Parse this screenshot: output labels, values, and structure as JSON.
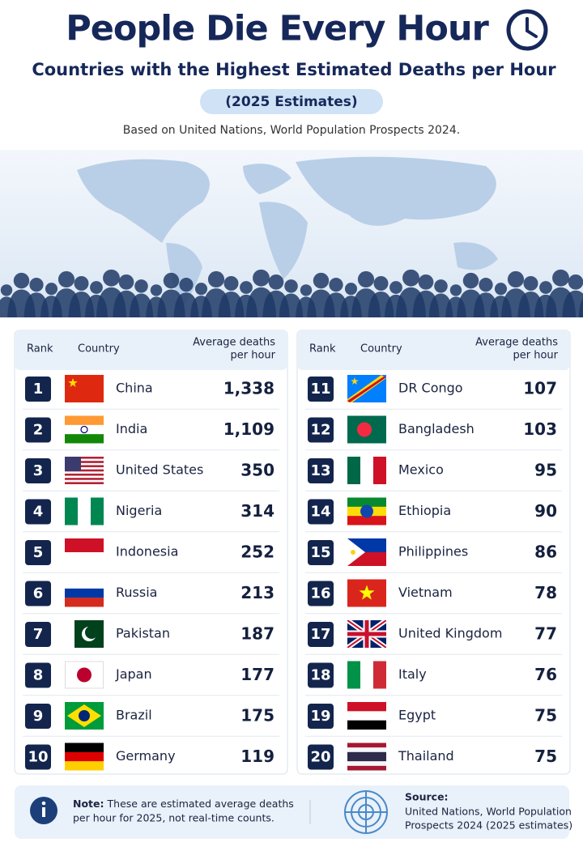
{
  "header": {
    "title": "People Die Every Hour",
    "subtitle": "Countries with the Highest Estimated Deaths per Hour",
    "badge": "(2025 Estimates)",
    "source_line": "Based on United Nations, World Population Prospects 2024."
  },
  "tables": [
    {
      "columns": [
        "Rank",
        "Country",
        [
          "Average deaths",
          "per hour"
        ]
      ],
      "rows": [
        [
          1,
          "China",
          "1,338"
        ],
        [
          2,
          "India",
          "1,109"
        ],
        [
          3,
          "United States",
          "350"
        ],
        [
          4,
          "Nigeria",
          "314"
        ],
        [
          5,
          "Indonesia",
          "252"
        ],
        [
          6,
          "Russia",
          "213"
        ],
        [
          7,
          "Pakistan",
          "187"
        ],
        [
          8,
          "Japan",
          "177"
        ],
        [
          9,
          "Brazil",
          "175"
        ],
        [
          10,
          "Germany",
          "119"
        ]
      ]
    },
    {
      "columns": [
        "Rank",
        "Country",
        [
          "Average deaths",
          "per hour"
        ]
      ],
      "rows": [
        [
          11,
          "DR Congo",
          "107"
        ],
        [
          12,
          "Bangladesh",
          "103"
        ],
        [
          13,
          "Mexico",
          "95"
        ],
        [
          14,
          "Ethiopia",
          "90"
        ],
        [
          15,
          "Philippines",
          "86"
        ],
        [
          16,
          "Vietnam",
          "78"
        ],
        [
          17,
          "United Kingdom",
          "77"
        ],
        [
          18,
          "Italy",
          "76"
        ],
        [
          19,
          "Egypt",
          "75"
        ],
        [
          20,
          "Thailand",
          "75"
        ]
      ]
    }
  ],
  "footer": {
    "note": {
      "label": "Note:",
      "lines": [
        "These are estimated average deaths",
        "per hour for 2025, not real-time counts."
      ]
    },
    "source": {
      "label": "Source:",
      "lines": [
        "United Nations, World Population",
        "Prospects 2024 (2025 estimates)"
      ]
    }
  }
}
